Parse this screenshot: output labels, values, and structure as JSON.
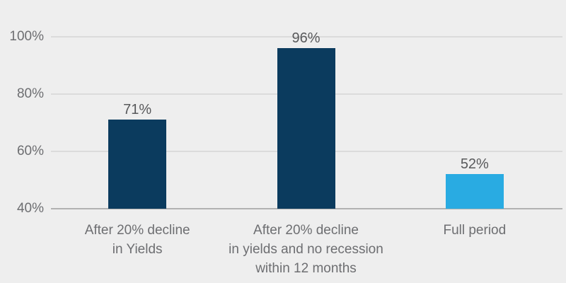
{
  "chart_data": {
    "type": "bar",
    "title": "",
    "xlabel": "",
    "ylabel": "",
    "categories": [
      [
        "After 20% decline",
        "in Yields"
      ],
      [
        "After 20% decline",
        "in yields and no recession",
        "within 12 months"
      ],
      [
        "Full period"
      ]
    ],
    "values": [
      71,
      96,
      52
    ],
    "value_labels": [
      "71%",
      "96%",
      "52%"
    ],
    "bar_colors": [
      "#0b3b5e",
      "#0b3b5e",
      "#29abe2"
    ],
    "ylim": [
      40,
      100
    ],
    "yticks": [
      {
        "value": 100,
        "label": "100%"
      },
      {
        "value": 80,
        "label": "80%"
      },
      {
        "value": 60,
        "label": "60%"
      },
      {
        "value": 40,
        "label": "40%"
      }
    ],
    "grid": "horizontal",
    "legend": "none",
    "colors": {
      "background": "#eeeeee",
      "gridline": "#dbdbdb",
      "baseline": "#b1b1b1",
      "axis_text": "#6d6e71",
      "value_text": "#58595b"
    }
  }
}
